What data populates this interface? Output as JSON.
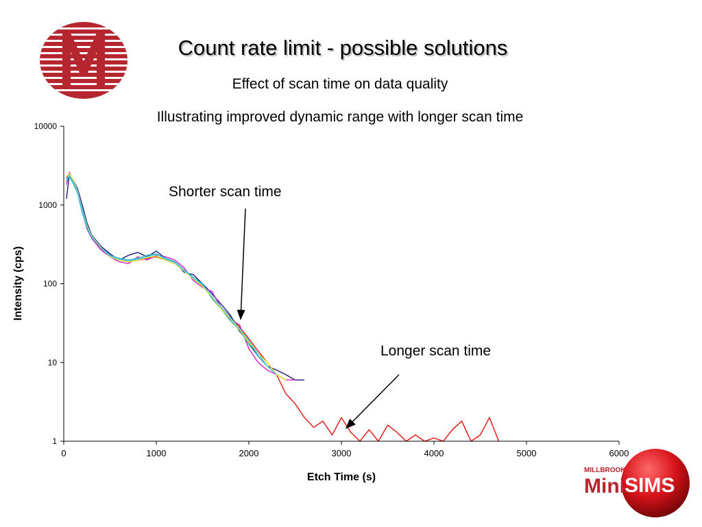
{
  "slide": {
    "title": "Count rate limit - possible solutions",
    "subtitle": "Effect of scan time on data quality"
  },
  "brand": {
    "top_text": "MILLBROOK",
    "mini_text": "Mini",
    "sims_text": "SIMS"
  },
  "colors": {
    "accent_red": "#b5262f",
    "long_scan": "#e3120b"
  },
  "chart_data": {
    "type": "line",
    "title": "Illustrating improved dynamic range with longer scan  time",
    "xlabel": "Etch Time (s)",
    "ylabel": "Intensity (cps)",
    "xlim": [
      0,
      6000
    ],
    "ylim": [
      1,
      10000
    ],
    "yscale": "log",
    "x_ticks": [
      "0",
      "1000",
      "2000",
      "3000",
      "4000",
      "5000",
      "6000"
    ],
    "y_ticks": [
      "1",
      "10",
      "100",
      "1000",
      "10000"
    ],
    "annotations": [
      {
        "text": "Shorter scan time",
        "points_to": [
          1900,
          25
        ]
      },
      {
        "text": "Longer scan time",
        "points_to": [
          3050,
          1.5
        ]
      }
    ],
    "series": [
      {
        "color": "#e3120b",
        "x": [
          30,
          60,
          100,
          150,
          200,
          250,
          300,
          400,
          500,
          600,
          700,
          800,
          900,
          1000,
          1100,
          1200,
          1300,
          1400,
          1500,
          1600,
          1700,
          1800,
          1900,
          2000,
          2100,
          2200,
          2300,
          2400,
          2500,
          2600,
          2700,
          2800,
          2900,
          3000,
          3100,
          3200,
          3300,
          3400,
          3500,
          3600,
          3700,
          3800,
          3900,
          4000,
          4100,
          4200,
          4300,
          4400,
          4500,
          4600,
          4700
        ],
        "y": [
          2200,
          2500,
          2000,
          1500,
          900,
          550,
          400,
          280,
          230,
          200,
          190,
          200,
          210,
          220,
          200,
          180,
          150,
          120,
          95,
          70,
          50,
          38,
          28,
          20,
          14,
          10,
          7,
          4,
          3,
          2,
          1.5,
          1.8,
          1.2,
          2,
          1.3,
          1,
          1.4,
          1,
          1.6,
          1.3,
          1,
          1.2,
          1,
          1.1,
          1,
          1.4,
          1.8,
          1,
          1.2,
          2,
          1
        ]
      },
      {
        "color": "#1a1a80",
        "x": [
          30,
          60,
          100,
          150,
          200,
          250,
          300,
          400,
          500,
          600,
          700,
          800,
          900,
          1000,
          1100,
          1200,
          1300,
          1400,
          1500,
          1600,
          1700,
          1800,
          1900,
          2000,
          2100,
          2200,
          2300,
          2400,
          2500,
          2600
        ],
        "y": [
          1200,
          2400,
          2100,
          1600,
          1000,
          600,
          420,
          300,
          240,
          200,
          230,
          250,
          220,
          260,
          210,
          190,
          140,
          130,
          100,
          75,
          55,
          40,
          25,
          18,
          12,
          9,
          8,
          7,
          6,
          6
        ]
      },
      {
        "color": "#cc22cc",
        "x": [
          30,
          60,
          100,
          150,
          200,
          250,
          300,
          400,
          500,
          600,
          700,
          800,
          900,
          1000,
          1100,
          1200,
          1300,
          1400,
          1500,
          1600,
          1700,
          1800,
          1900,
          2000,
          2100,
          2200,
          2300,
          2400,
          2500
        ],
        "y": [
          1800,
          2600,
          2000,
          1500,
          850,
          500,
          380,
          270,
          220,
          190,
          180,
          220,
          200,
          230,
          220,
          200,
          160,
          110,
          90,
          80,
          50,
          35,
          30,
          15,
          10,
          8,
          7,
          6,
          6
        ]
      },
      {
        "color": "#2ab0b0",
        "x": [
          30,
          60,
          100,
          150,
          200,
          250,
          300,
          400,
          500,
          600,
          700,
          800,
          900,
          1000,
          1100,
          1200,
          1300,
          1400,
          1500,
          1600,
          1700,
          1800,
          1900,
          2000,
          2100,
          2200,
          2300,
          2400
        ],
        "y": [
          2000,
          2300,
          1900,
          1400,
          800,
          520,
          390,
          290,
          230,
          210,
          200,
          210,
          230,
          240,
          210,
          190,
          150,
          120,
          100,
          65,
          48,
          34,
          26,
          17,
          12,
          9,
          7,
          6
        ]
      },
      {
        "color": "#f0e020",
        "x": [
          30,
          60,
          100,
          150,
          200,
          250,
          300,
          400,
          500,
          600,
          700,
          800,
          900,
          1000,
          1100,
          1200,
          1300,
          1400,
          1500,
          1600,
          1700,
          1800,
          1900,
          2000,
          2100,
          2200,
          2300,
          2400
        ],
        "y": [
          2300,
          2500,
          2100,
          1500,
          900,
          560,
          410,
          290,
          220,
          200,
          190,
          200,
          215,
          225,
          200,
          180,
          145,
          115,
          92,
          68,
          48,
          36,
          26,
          18,
          13,
          10,
          7,
          6
        ]
      },
      {
        "color": "#50d0f0",
        "x": [
          30,
          60,
          100,
          150,
          200,
          250,
          300,
          400,
          500,
          600,
          700,
          800,
          900,
          1000,
          1100,
          1200,
          1300,
          1400,
          1500,
          1600,
          1700,
          1800,
          1900,
          2000,
          2100,
          2200,
          2300
        ],
        "y": [
          2100,
          2400,
          2000,
          1450,
          880,
          540,
          400,
          285,
          225,
          205,
          195,
          205,
          220,
          235,
          205,
          185,
          148,
          118,
          96,
          70,
          50,
          37,
          27,
          19,
          13,
          9,
          7
        ]
      }
    ]
  }
}
